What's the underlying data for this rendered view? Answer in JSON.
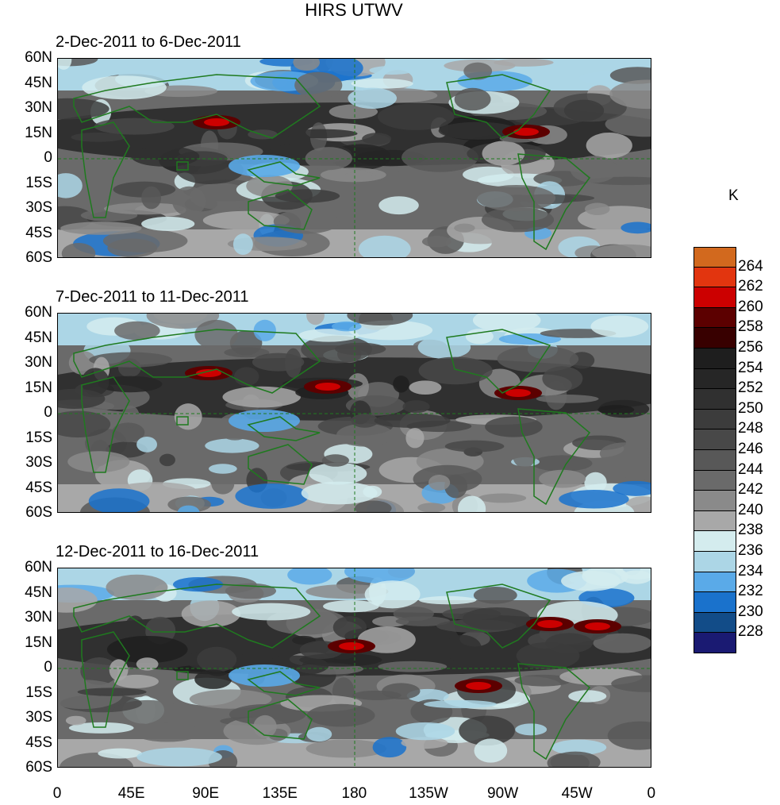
{
  "title": "HIRS UTWV",
  "panels": [
    {
      "title": "2-Dec-2011 to 6-Dec-2011"
    },
    {
      "title": "7-Dec-2011 to 11-Dec-2011"
    },
    {
      "title": "12-Dec-2011 to 16-Dec-2011"
    }
  ],
  "lat_labels": [
    "60N",
    "45N",
    "30N",
    "15N",
    "0",
    "15S",
    "30S",
    "45S",
    "60S"
  ],
  "lon_labels": [
    "0",
    "45E",
    "90E",
    "135E",
    "180",
    "135W",
    "90W",
    "45W",
    "0"
  ],
  "colorbar": {
    "unit": "K",
    "labels": [
      "264",
      "262",
      "260",
      "258",
      "256",
      "254",
      "252",
      "250",
      "248",
      "246",
      "244",
      "242",
      "240",
      "238",
      "236",
      "234",
      "232",
      "230",
      "228"
    ],
    "colors": [
      "#d2691e",
      "#e2350f",
      "#cc0000",
      "#5c0000",
      "#380000",
      "#1e1e1e",
      "#262626",
      "#303030",
      "#3c3c3c",
      "#484848",
      "#585858",
      "#6a6a6a",
      "#8a8a8a",
      "#a8a8a8",
      "#d4ecee",
      "#acd6e6",
      "#5aaae8",
      "#1a72cc",
      "#124c88",
      "#1a1a72"
    ]
  },
  "coastline_color": "#1f7a1f"
}
